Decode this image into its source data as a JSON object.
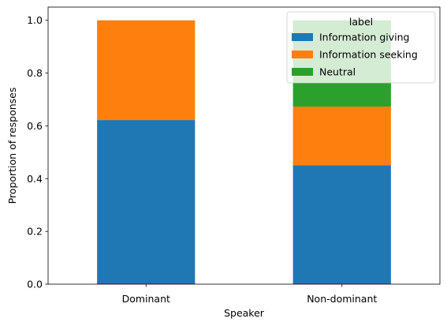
{
  "chart_data": {
    "type": "bar",
    "stacked": true,
    "categories": [
      "Dominant",
      "Non-dominant"
    ],
    "series": [
      {
        "name": "Information giving",
        "values": [
          0.622,
          0.451
        ],
        "color": "#1f77b4"
      },
      {
        "name": "Information seeking",
        "values": [
          0.378,
          0.222
        ],
        "color": "#ff7f0e"
      },
      {
        "name": "Neutral",
        "values": [
          0.0,
          0.327
        ],
        "color": "#2ca02c"
      }
    ],
    "xlabel": "Speaker",
    "ylabel": "Proportion of responses",
    "ylim": [
      0,
      1.05
    ],
    "yticks": [
      0.0,
      0.2,
      0.4,
      0.6,
      0.8,
      1.0
    ],
    "ytick_labels": [
      "0.0",
      "0.2",
      "0.4",
      "0.6",
      "0.8",
      "1.0"
    ],
    "legend": {
      "title": "label",
      "placement": "top-right"
    },
    "grid": false
  }
}
